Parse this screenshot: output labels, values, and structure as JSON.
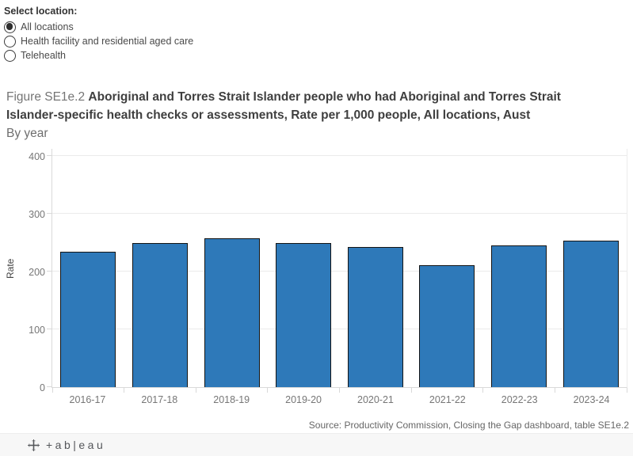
{
  "filter": {
    "label": "Select location:",
    "options": [
      {
        "label": "All locations",
        "selected": true
      },
      {
        "label": "Health facility and residential aged care",
        "selected": false
      },
      {
        "label": "Telehealth",
        "selected": false
      }
    ]
  },
  "title": {
    "prefix": "Figure SE1e.2 ",
    "main": "Aboriginal and Torres Strait Islander people who had Aboriginal and Torres Strait Islander-specific health checks or assessments, Rate per 1,000 people, All locations, Aust",
    "subtitle": "By year"
  },
  "chart_data": {
    "type": "bar",
    "categories": [
      "2016-17",
      "2017-18",
      "2018-19",
      "2019-20",
      "2020-21",
      "2021-22",
      "2022-23",
      "2023-24"
    ],
    "values": [
      234,
      250,
      257,
      250,
      243,
      211,
      245,
      254
    ],
    "title": "",
    "xlabel": "",
    "ylabel": "Rate",
    "ylim": [
      0,
      400
    ],
    "yticks": [
      0,
      100,
      200,
      300,
      400
    ],
    "grid": true,
    "legend": "none",
    "bar_color": "#2e79b9",
    "bar_border_color": "#141414"
  },
  "source": "Source: Productivity Commission, Closing the Gap dashboard, table SE1e.2",
  "footer": {
    "brand": "tableau",
    "wordmark": "+ab|eau"
  }
}
